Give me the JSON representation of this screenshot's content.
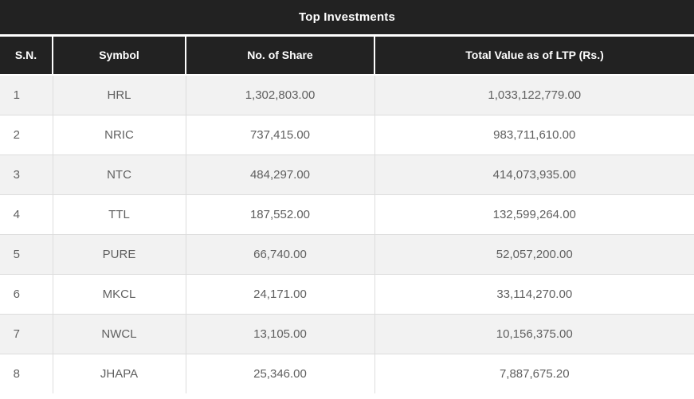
{
  "title": "Top Investments",
  "table": {
    "columns": [
      "S.N.",
      "Symbol",
      "No. of Share",
      "Total Value as of LTP (Rs.)"
    ],
    "rows": [
      [
        "1",
        "HRL",
        "1,302,803.00",
        "1,033,122,779.00"
      ],
      [
        "2",
        "NRIC",
        "737,415.00",
        "983,711,610.00"
      ],
      [
        "3",
        "NTC",
        "484,297.00",
        "414,073,935.00"
      ],
      [
        "4",
        "TTL",
        "187,552.00",
        "132,599,264.00"
      ],
      [
        "5",
        "PURE",
        "66,740.00",
        "52,057,200.00"
      ],
      [
        "6",
        "MKCL",
        "24,171.00",
        "33,114,270.00"
      ],
      [
        "7",
        "NWCL",
        "13,105.00",
        "10,156,375.00"
      ],
      [
        "8",
        "JHAPA",
        "25,346.00",
        "7,887,675.20"
      ]
    ]
  },
  "colors": {
    "header_bg": "#222222",
    "header_text": "#ffffff",
    "row_alt_bg": "#f2f2f2",
    "row_bg": "#ffffff",
    "body_text": "#606060",
    "border": "#dddddd"
  }
}
